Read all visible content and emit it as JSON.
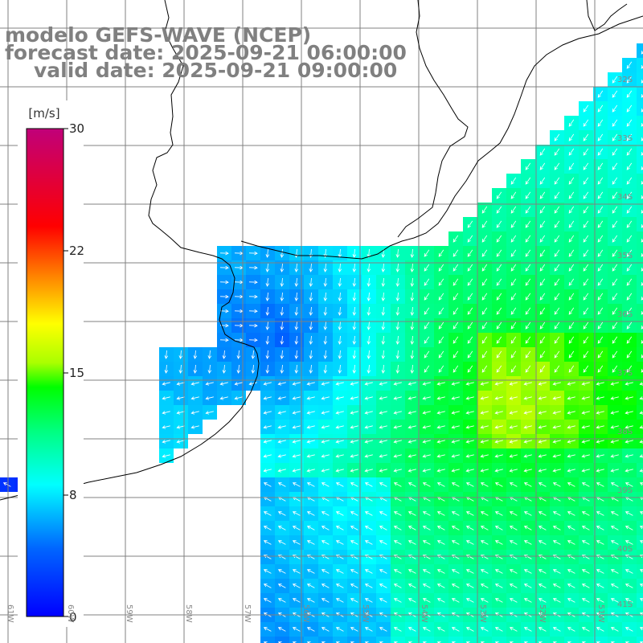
{
  "header": {
    "model": "modelo GEFS-WAVE (NCEP)",
    "forecast_date": "forecast date: 2025-09-21 06:00:00",
    "valid_date": "valid date: 2025-09-21 09:00:00"
  },
  "colorbar": {
    "unit": "[m/s]",
    "ticks": [
      "30",
      "22",
      "15",
      "8",
      "0"
    ],
    "range": [
      0,
      30
    ],
    "colors": [
      "#0000ff",
      "#0066ff",
      "#00ffff",
      "#00ff80",
      "#00ff00",
      "#aaff00",
      "#ffff00",
      "#ff8000",
      "#ff0000",
      "#c0007a"
    ]
  },
  "axes": {
    "lon_labels": [
      "61W",
      "60W",
      "59W",
      "58W",
      "57W",
      "56W",
      "55W",
      "54W",
      "53W",
      "52W",
      "51W"
    ],
    "lat_labels": [
      "32S",
      "33S",
      "34S",
      "35S",
      "36S",
      "37S",
      "38S",
      "39S",
      "40S",
      "41S"
    ]
  },
  "legend_colors": {
    "land": "#ffffff",
    "coastline": "#000000",
    "grid": "#808080",
    "arrows": "#ffffff",
    "title_text": "#808080"
  }
}
